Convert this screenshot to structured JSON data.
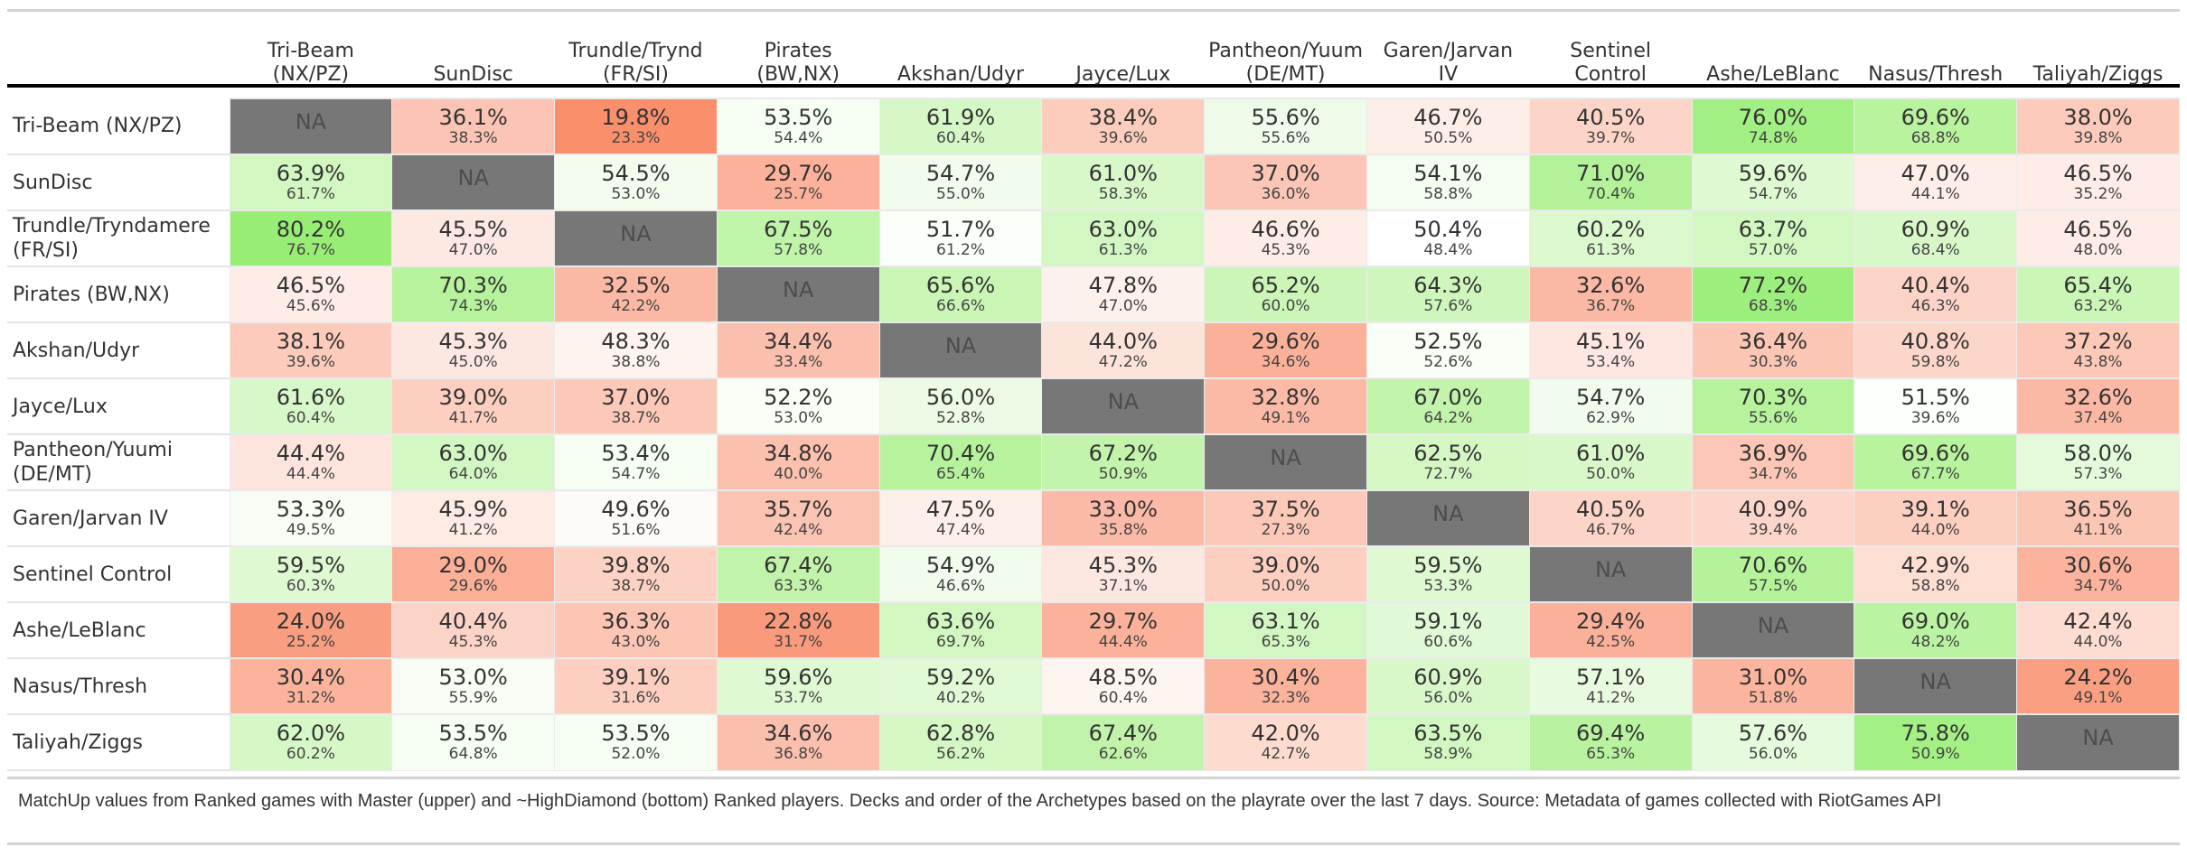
{
  "chart_data": {
    "type": "table",
    "columns": [
      "Tri-Beam\n(NX/PZ)",
      "SunDisc",
      "Trundle/Trynd\n(FR/SI)",
      "Pirates\n(BW,NX)",
      "Akshan/Udyr",
      "Jayce/Lux",
      "Pantheon/Yuum\n(DE/MT)",
      "Garen/Jarvan\nIV",
      "Sentinel\nControl",
      "Ashe/LeBlanc",
      "Nasus/Thresh",
      "Taliyah/Ziggs"
    ],
    "rows": [
      {
        "label": "Tri-Beam (NX/PZ)",
        "cells": [
          {
            "m": "NA",
            "d": "",
            "bg": "#777777"
          },
          {
            "m": "36.1%",
            "d": "38.3%",
            "bg": "#fbc4b4"
          },
          {
            "m": "19.8%",
            "d": "23.3%",
            "bg": "#fa8f6c"
          },
          {
            "m": "53.5%",
            "d": "54.4%",
            "bg": "#f6fdf2"
          },
          {
            "m": "61.9%",
            "d": "60.4%",
            "bg": "#d6f8c6"
          },
          {
            "m": "38.4%",
            "d": "39.6%",
            "bg": "#fccdbd"
          },
          {
            "m": "55.6%",
            "d": "55.6%",
            "bg": "#eefbe8"
          },
          {
            "m": "46.7%",
            "d": "50.5%",
            "bg": "#fdeee8"
          },
          {
            "m": "40.5%",
            "d": "39.7%",
            "bg": "#fcd5c8"
          },
          {
            "m": "76.0%",
            "d": "74.8%",
            "bg": "#a2f083"
          },
          {
            "m": "69.6%",
            "d": "68.8%",
            "bg": "#b8f39e"
          },
          {
            "m": "38.0%",
            "d": "39.8%",
            "bg": "#fccbbb"
          }
        ]
      },
      {
        "label": "SunDisc",
        "cells": [
          {
            "m": "63.9%",
            "d": "61.7%",
            "bg": "#d2f7c0"
          },
          {
            "m": "NA",
            "d": "",
            "bg": "#777777"
          },
          {
            "m": "54.5%",
            "d": "53.0%",
            "bg": "#f3fced"
          },
          {
            "m": "29.7%",
            "d": "25.7%",
            "bg": "#fbb19a"
          },
          {
            "m": "54.7%",
            "d": "55.0%",
            "bg": "#f2fcec"
          },
          {
            "m": "61.0%",
            "d": "58.3%",
            "bg": "#d9f8ca"
          },
          {
            "m": "37.0%",
            "d": "36.0%",
            "bg": "#fbc6b5"
          },
          {
            "m": "54.1%",
            "d": "58.8%",
            "bg": "#f4fdef"
          },
          {
            "m": "71.0%",
            "d": "70.4%",
            "bg": "#b3f298"
          },
          {
            "m": "59.6%",
            "d": "54.7%",
            "bg": "#dff9d3"
          },
          {
            "m": "47.0%",
            "d": "44.1%",
            "bg": "#fdeee8"
          },
          {
            "m": "46.5%",
            "d": "35.2%",
            "bg": "#fdede6"
          }
        ]
      },
      {
        "label": "Trundle/Tryndamere\n(FR/SI)",
        "cells": [
          {
            "m": "80.2%",
            "d": "76.7%",
            "bg": "#98ee75"
          },
          {
            "m": "45.5%",
            "d": "47.0%",
            "bg": "#fde9e2"
          },
          {
            "m": "NA",
            "d": "",
            "bg": "#777777"
          },
          {
            "m": "67.5%",
            "d": "57.8%",
            "bg": "#c0f4a9"
          },
          {
            "m": "51.7%",
            "d": "61.2%",
            "bg": "#fbfffa"
          },
          {
            "m": "63.0%",
            "d": "61.3%",
            "bg": "#d3f7c2"
          },
          {
            "m": "46.6%",
            "d": "45.3%",
            "bg": "#fdede6"
          },
          {
            "m": "50.4%",
            "d": "48.4%",
            "bg": "#ffffff"
          },
          {
            "m": "60.2%",
            "d": "61.3%",
            "bg": "#dcf9ce"
          },
          {
            "m": "63.7%",
            "d": "57.0%",
            "bg": "#d2f7c1"
          },
          {
            "m": "60.9%",
            "d": "68.4%",
            "bg": "#d9f8ca"
          },
          {
            "m": "46.5%",
            "d": "48.0%",
            "bg": "#fdede6"
          }
        ]
      },
      {
        "label": "Pirates (BW,NX)",
        "cells": [
          {
            "m": "46.5%",
            "d": "45.6%",
            "bg": "#fdede6"
          },
          {
            "m": "70.3%",
            "d": "74.3%",
            "bg": "#b6f39c"
          },
          {
            "m": "32.5%",
            "d": "42.2%",
            "bg": "#fbb9a5"
          },
          {
            "m": "NA",
            "d": "",
            "bg": "#777777"
          },
          {
            "m": "65.6%",
            "d": "66.6%",
            "bg": "#c9f6b5"
          },
          {
            "m": "47.8%",
            "d": "47.0%",
            "bg": "#fdf1ec"
          },
          {
            "m": "65.2%",
            "d": "60.0%",
            "bg": "#cbf6b7"
          },
          {
            "m": "64.3%",
            "d": "57.6%",
            "bg": "#cff7bd"
          },
          {
            "m": "32.6%",
            "d": "36.7%",
            "bg": "#fbb9a5"
          },
          {
            "m": "77.2%",
            "d": "68.3%",
            "bg": "#9def7d"
          },
          {
            "m": "40.4%",
            "d": "46.3%",
            "bg": "#fcd4c7"
          },
          {
            "m": "65.4%",
            "d": "63.2%",
            "bg": "#caf6b6"
          }
        ]
      },
      {
        "label": "Akshan/Udyr",
        "cells": [
          {
            "m": "38.1%",
            "d": "39.6%",
            "bg": "#fccbbb"
          },
          {
            "m": "45.3%",
            "d": "45.0%",
            "bg": "#fde8e1"
          },
          {
            "m": "48.3%",
            "d": "38.8%",
            "bg": "#fef3ef"
          },
          {
            "m": "34.4%",
            "d": "33.4%",
            "bg": "#fbbfad"
          },
          {
            "m": "NA",
            "d": "",
            "bg": "#777777"
          },
          {
            "m": "44.0%",
            "d": "47.2%",
            "bg": "#fde4db"
          },
          {
            "m": "29.6%",
            "d": "34.6%",
            "bg": "#fbb199"
          },
          {
            "m": "52.5%",
            "d": "52.6%",
            "bg": "#f9fef7"
          },
          {
            "m": "45.1%",
            "d": "53.4%",
            "bg": "#fde7e0"
          },
          {
            "m": "36.4%",
            "d": "30.3%",
            "bg": "#fbc6b4"
          },
          {
            "m": "40.8%",
            "d": "59.8%",
            "bg": "#fcd6c9"
          },
          {
            "m": "37.2%",
            "d": "43.8%",
            "bg": "#fcc8b7"
          }
        ]
      },
      {
        "label": "Jayce/Lux",
        "cells": [
          {
            "m": "61.6%",
            "d": "60.4%",
            "bg": "#d7f8c8"
          },
          {
            "m": "39.0%",
            "d": "41.7%",
            "bg": "#fccfc0"
          },
          {
            "m": "37.0%",
            "d": "38.7%",
            "bg": "#fcc8b7"
          },
          {
            "m": "52.2%",
            "d": "53.0%",
            "bg": "#f9fef7"
          },
          {
            "m": "56.0%",
            "d": "52.8%",
            "bg": "#ecfbe5"
          },
          {
            "m": "NA",
            "d": "",
            "bg": "#777777"
          },
          {
            "m": "32.8%",
            "d": "49.1%",
            "bg": "#fbbaa6"
          },
          {
            "m": "67.0%",
            "d": "64.2%",
            "bg": "#c3f4ac"
          },
          {
            "m": "54.7%",
            "d": "62.9%",
            "bg": "#f2fcec"
          },
          {
            "m": "70.3%",
            "d": "55.6%",
            "bg": "#b6f39c"
          },
          {
            "m": "51.5%",
            "d": "39.6%",
            "bg": "#fcfffb"
          },
          {
            "m": "32.6%",
            "d": "37.4%",
            "bg": "#fbb9a5"
          }
        ]
      },
      {
        "label": "Pantheon/Yuumi\n(DE/MT)",
        "cells": [
          {
            "m": "44.4%",
            "d": "44.4%",
            "bg": "#fde5dd"
          },
          {
            "m": "63.0%",
            "d": "64.0%",
            "bg": "#d3f7c2"
          },
          {
            "m": "53.4%",
            "d": "54.7%",
            "bg": "#f6fdf3"
          },
          {
            "m": "34.8%",
            "d": "40.0%",
            "bg": "#fbc0ae"
          },
          {
            "m": "70.4%",
            "d": "65.4%",
            "bg": "#b6f39c"
          },
          {
            "m": "67.2%",
            "d": "50.9%",
            "bg": "#c2f4ab"
          },
          {
            "m": "NA",
            "d": "",
            "bg": "#777777"
          },
          {
            "m": "62.5%",
            "d": "72.7%",
            "bg": "#d4f7c3"
          },
          {
            "m": "61.0%",
            "d": "50.0%",
            "bg": "#d9f8ca"
          },
          {
            "m": "36.9%",
            "d": "34.7%",
            "bg": "#fcc7b6"
          },
          {
            "m": "69.6%",
            "d": "67.7%",
            "bg": "#b8f39e"
          },
          {
            "m": "58.0%",
            "d": "57.3%",
            "bg": "#e5fadb"
          }
        ]
      },
      {
        "label": "Garen/Jarvan IV",
        "cells": [
          {
            "m": "53.3%",
            "d": "49.5%",
            "bg": "#f7fdf4"
          },
          {
            "m": "45.9%",
            "d": "41.2%",
            "bg": "#fdebe4"
          },
          {
            "m": "49.6%",
            "d": "51.6%",
            "bg": "#fefaf8"
          },
          {
            "m": "35.7%",
            "d": "42.4%",
            "bg": "#fbc3b2"
          },
          {
            "m": "47.5%",
            "d": "47.4%",
            "bg": "#fdf0eb"
          },
          {
            "m": "33.0%",
            "d": "35.8%",
            "bg": "#fbbaa7"
          },
          {
            "m": "37.5%",
            "d": "27.3%",
            "bg": "#fcc9b9"
          },
          {
            "m": "NA",
            "d": "",
            "bg": "#777777"
          },
          {
            "m": "40.5%",
            "d": "46.7%",
            "bg": "#fcd5c8"
          },
          {
            "m": "40.9%",
            "d": "39.4%",
            "bg": "#fcd6ca"
          },
          {
            "m": "39.1%",
            "d": "44.0%",
            "bg": "#fccfc1"
          },
          {
            "m": "36.5%",
            "d": "41.1%",
            "bg": "#fcc6b4"
          }
        ]
      },
      {
        "label": "Sentinel Control",
        "cells": [
          {
            "m": "59.5%",
            "d": "60.3%",
            "bg": "#dff9d3"
          },
          {
            "m": "29.0%",
            "d": "29.6%",
            "bg": "#fbaf97"
          },
          {
            "m": "39.8%",
            "d": "38.7%",
            "bg": "#fcd2c4"
          },
          {
            "m": "67.4%",
            "d": "63.3%",
            "bg": "#c1f4aa"
          },
          {
            "m": "54.9%",
            "d": "46.6%",
            "bg": "#f2fcec"
          },
          {
            "m": "45.3%",
            "d": "37.1%",
            "bg": "#fde8e1"
          },
          {
            "m": "39.0%",
            "d": "50.0%",
            "bg": "#fccfc0"
          },
          {
            "m": "59.5%",
            "d": "53.3%",
            "bg": "#dff9d3"
          },
          {
            "m": "NA",
            "d": "",
            "bg": "#777777"
          },
          {
            "m": "70.6%",
            "d": "57.5%",
            "bg": "#b5f39a"
          },
          {
            "m": "42.9%",
            "d": "58.8%",
            "bg": "#fdded3"
          },
          {
            "m": "30.6%",
            "d": "34.7%",
            "bg": "#fbb39d"
          }
        ]
      },
      {
        "label": "Ashe/LeBlanc",
        "cells": [
          {
            "m": "24.0%",
            "d": "25.2%",
            "bg": "#fa9e81"
          },
          {
            "m": "40.4%",
            "d": "45.3%",
            "bg": "#fcd4c7"
          },
          {
            "m": "36.3%",
            "d": "43.0%",
            "bg": "#fcc5b4"
          },
          {
            "m": "22.8%",
            "d": "31.7%",
            "bg": "#fa9a7c"
          },
          {
            "m": "63.6%",
            "d": "69.7%",
            "bg": "#d2f7c1"
          },
          {
            "m": "29.7%",
            "d": "44.4%",
            "bg": "#fbb19a"
          },
          {
            "m": "63.1%",
            "d": "65.3%",
            "bg": "#d3f7c2"
          },
          {
            "m": "59.1%",
            "d": "60.6%",
            "bg": "#e1f9d6"
          },
          {
            "m": "29.4%",
            "d": "42.5%",
            "bg": "#fbb099"
          },
          {
            "m": "NA",
            "d": "",
            "bg": "#777777"
          },
          {
            "m": "69.0%",
            "d": "48.2%",
            "bg": "#baf3a1"
          },
          {
            "m": "42.4%",
            "d": "44.0%",
            "bg": "#fddcd1"
          }
        ]
      },
      {
        "label": "Nasus/Thresh",
        "cells": [
          {
            "m": "30.4%",
            "d": "31.2%",
            "bg": "#fbb39c"
          },
          {
            "m": "53.0%",
            "d": "55.9%",
            "bg": "#f7fdf5"
          },
          {
            "m": "39.1%",
            "d": "31.6%",
            "bg": "#fccfc1"
          },
          {
            "m": "59.6%",
            "d": "53.7%",
            "bg": "#dff9d3"
          },
          {
            "m": "59.2%",
            "d": "40.2%",
            "bg": "#e1f9d5"
          },
          {
            "m": "48.5%",
            "d": "60.4%",
            "bg": "#fef4f0"
          },
          {
            "m": "30.4%",
            "d": "32.3%",
            "bg": "#fbb39c"
          },
          {
            "m": "60.9%",
            "d": "56.0%",
            "bg": "#d9f8ca"
          },
          {
            "m": "57.1%",
            "d": "41.2%",
            "bg": "#e8fadf"
          },
          {
            "m": "31.0%",
            "d": "51.8%",
            "bg": "#fbb49e"
          },
          {
            "m": "NA",
            "d": "",
            "bg": "#777777"
          },
          {
            "m": "24.2%",
            "d": "49.1%",
            "bg": "#fa9f82"
          }
        ]
      },
      {
        "label": "Taliyah/Ziggs",
        "cells": [
          {
            "m": "62.0%",
            "d": "60.2%",
            "bg": "#d6f8c6"
          },
          {
            "m": "53.5%",
            "d": "64.8%",
            "bg": "#f6fdf2"
          },
          {
            "m": "53.5%",
            "d": "52.0%",
            "bg": "#f6fdf2"
          },
          {
            "m": "34.6%",
            "d": "36.8%",
            "bg": "#fbbfad"
          },
          {
            "m": "62.8%",
            "d": "56.2%",
            "bg": "#d4f7c3"
          },
          {
            "m": "67.4%",
            "d": "62.6%",
            "bg": "#c1f4aa"
          },
          {
            "m": "42.0%",
            "d": "42.7%",
            "bg": "#fddbcf"
          },
          {
            "m": "63.5%",
            "d": "58.9%",
            "bg": "#d2f7c1"
          },
          {
            "m": "69.4%",
            "d": "65.3%",
            "bg": "#b9f39f"
          },
          {
            "m": "57.6%",
            "d": "56.0%",
            "bg": "#e6fadd"
          },
          {
            "m": "75.8%",
            "d": "50.9%",
            "bg": "#a3f084"
          },
          {
            "m": "NA",
            "d": "",
            "bg": "#777777"
          }
        ]
      }
    ]
  },
  "footnote": "MatchUp values from Ranked games with Master (upper) and ~HighDiamond (bottom) Ranked players. Decks and order of the Archetypes based on the playrate over the last 7 days. Source: Metadata of games collected with RiotGames API"
}
